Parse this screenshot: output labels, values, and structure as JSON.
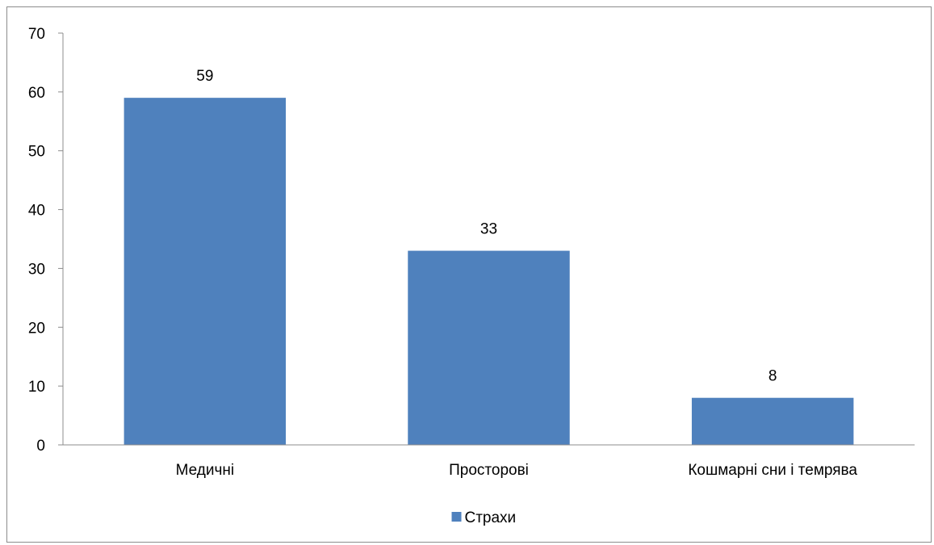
{
  "chart_data": {
    "type": "bar",
    "title": "",
    "xlabel": "",
    "ylabel": "",
    "categories": [
      "Медичні",
      "Просторові",
      "Кошмарні сни і темрява"
    ],
    "series": [
      {
        "name": "Страхи",
        "values": [
          59,
          33,
          8
        ],
        "color": "#4f81bd"
      }
    ],
    "data_labels": [
      "59",
      "33",
      "8"
    ],
    "ylim": [
      0,
      70
    ],
    "yticks": [
      0,
      10,
      20,
      30,
      40,
      50,
      60,
      70
    ],
    "ytick_labels": [
      "0",
      "10",
      "20",
      "30",
      "40",
      "50",
      "60",
      "70"
    ],
    "grid": false,
    "legend": {
      "position": "bottom",
      "entries": [
        "Страхи"
      ]
    }
  }
}
